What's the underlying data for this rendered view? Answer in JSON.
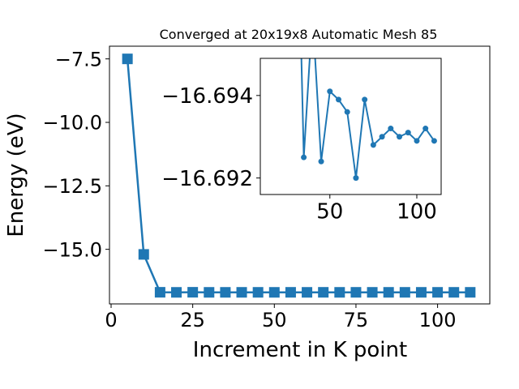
{
  "chart_data": [
    {
      "type": "line",
      "title": "Converged at 20x19x8 Automatic Mesh 85",
      "xlabel": "Increment in K point",
      "ylabel": "Energy (eV)",
      "xlim": [
        -0.5,
        116
      ],
      "ylim": [
        -17.15,
        -7.0
      ],
      "xticks": [
        0,
        25,
        50,
        75,
        100
      ],
      "yticks": [
        -7.5,
        -10.0,
        -12.5,
        -15.0
      ],
      "xtick_labels": [
        "0",
        "25",
        "50",
        "75",
        "100"
      ],
      "ytick_labels": [
        "−7.5",
        "−10.0",
        "−12.5",
        "−15.0"
      ],
      "marker": "square",
      "color": "#1f77b4",
      "grid": false,
      "series": [
        {
          "x": [
            5,
            10,
            15,
            20,
            25,
            30,
            35,
            40,
            45,
            50,
            55,
            60,
            65,
            70,
            75,
            80,
            85,
            90,
            95,
            100,
            105,
            110
          ],
          "y": [
            -7.5,
            -15.2,
            -16.692,
            -16.6947,
            -16.6913,
            -16.6946,
            -16.6944,
            -16.6942,
            -16.694,
            -16.6944,
            -16.6936,
            -16.6945,
            -16.6934,
            -16.6943,
            -16.6937,
            -16.694,
            -16.6941,
            -16.694,
            -16.6941,
            -16.6939,
            -16.6941,
            -16.6938
          ]
        }
      ]
    },
    {
      "type": "line",
      "title": "",
      "inset": true,
      "xlim": [
        10,
        114
      ],
      "ylim": [
        -16.6916,
        -16.6949
      ],
      "xticks": [
        50,
        100
      ],
      "yticks": [
        -16.694,
        -16.692
      ],
      "xtick_labels": [
        "50",
        "100"
      ],
      "ytick_labels": [
        "−16.694",
        "−16.692"
      ],
      "marker": "circle",
      "color": "#1f77b4",
      "grid": false,
      "series": [
        {
          "x": [
            33,
            35,
            40,
            45,
            50,
            55,
            60,
            65,
            70,
            75,
            80,
            85,
            90,
            95,
            100,
            105,
            110
          ],
          "y": [
            -16.696,
            -16.6925,
            -16.696,
            -16.6924,
            -16.6941,
            -16.6939,
            -16.6936,
            -16.692,
            -16.6939,
            -16.6928,
            -16.693,
            -16.6932,
            -16.693,
            -16.6931,
            -16.6929,
            -16.6932,
            -16.6929
          ]
        }
      ]
    }
  ]
}
